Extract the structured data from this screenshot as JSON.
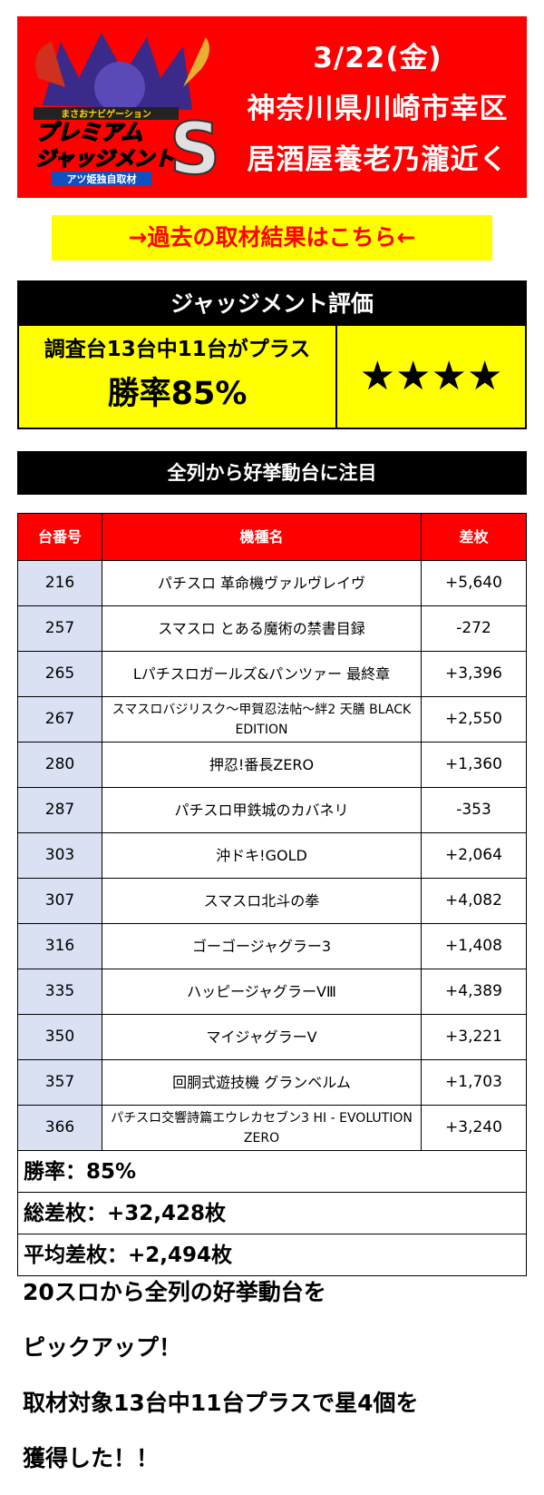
{
  "header": {
    "logo_text": [
      "まさおナビゲーション",
      "プレミアム",
      "ジャッジメント",
      "S",
      "アツ姫独自取材"
    ],
    "date": "3/22(金)",
    "location": "神奈川県川崎市幸区",
    "store": "居酒屋養老乃瀧近く"
  },
  "past_link": "→過去の取材結果はこちら←",
  "judgement": {
    "title": "ジャッジメント評価",
    "summary": "調査台13台中11台がプラス",
    "win_rate": "勝率85%",
    "stars": "★★★★"
  },
  "section_title": "全列から好挙動台に注目",
  "table": {
    "headers": [
      "台番号",
      "機種名",
      "差枚"
    ],
    "rows": [
      {
        "no": "216",
        "name": "パチスロ 革命機ヴァルヴレイヴ",
        "diff": "+5,640"
      },
      {
        "no": "257",
        "name": "スマスロ とある魔術の禁書目録",
        "diff": "-272"
      },
      {
        "no": "265",
        "name": "Lパチスロガールズ&パンツァー 最終章",
        "diff": "+3,396"
      },
      {
        "no": "267",
        "name": "スマスロバジリスク～甲賀忍法帖～絆2 天膳 BLACK EDITION",
        "diff": "+2,550"
      },
      {
        "no": "280",
        "name": "押忍!番長ZERO",
        "diff": "+1,360"
      },
      {
        "no": "287",
        "name": "パチスロ甲鉄城のカバネリ",
        "diff": "-353"
      },
      {
        "no": "303",
        "name": "沖ドキ!GOLD",
        "diff": "+2,064"
      },
      {
        "no": "307",
        "name": "スマスロ北斗の拳",
        "diff": "+4,082"
      },
      {
        "no": "316",
        "name": "ゴーゴージャグラー3",
        "diff": "+1,408"
      },
      {
        "no": "335",
        "name": "ハッピージャグラーVⅢ",
        "diff": "+4,389"
      },
      {
        "no": "350",
        "name": "マイジャグラーV",
        "diff": "+3,221"
      },
      {
        "no": "357",
        "name": "回胴式遊技機 グランベルム",
        "diff": "+1,703"
      },
      {
        "no": "366",
        "name": "パチスロ交響詩篇エウレカセブン3 HI - EVOLUTION ZERO",
        "diff": "+3,240"
      }
    ],
    "win_rate": "勝率：85%",
    "total": "総差枚：+32,428枚",
    "average": "平均差枚：+2,494枚"
  },
  "footer": [
    "20スロから全列の好挙動台を",
    "ピックアップ！",
    "取材対象13台中11台プラスで星4個を",
    "獲得した！！"
  ]
}
